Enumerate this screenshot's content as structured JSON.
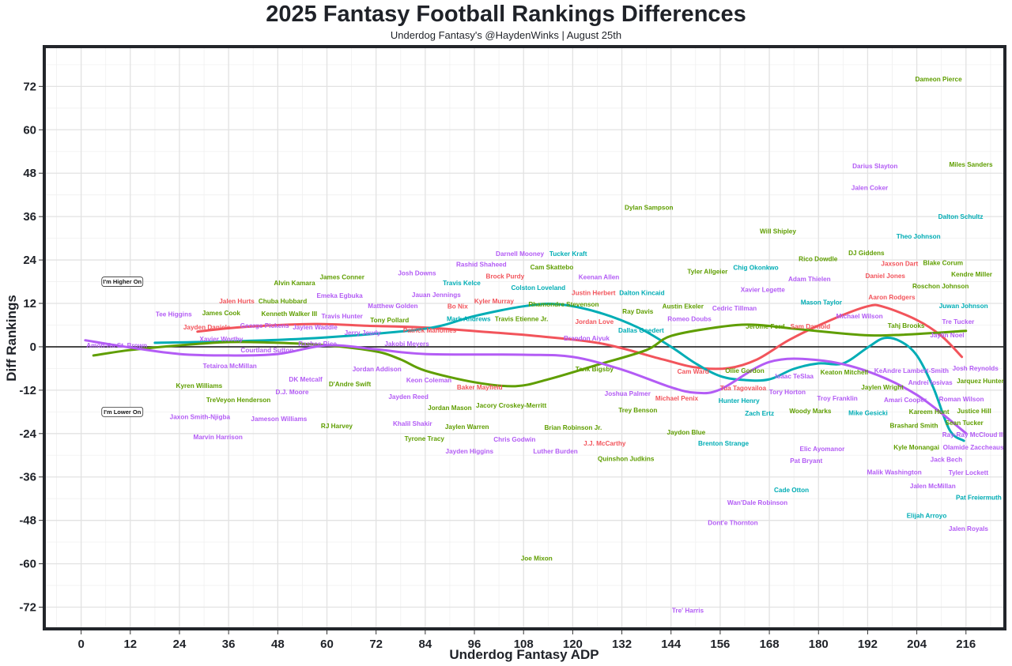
{
  "chart_data": {
    "type": "scatter",
    "title": "2025 Fantasy Football Rankings Differences",
    "subtitle": "Underdog Fantasy's @HaydenWinks | August 25th",
    "xlabel": "Underdog Fantasy ADP",
    "ylabel": "Diff Rankings",
    "xlim": [
      -9,
      225.5
    ],
    "ylim": [
      -78,
      83
    ],
    "xticks": [
      0,
      12,
      24,
      36,
      48,
      60,
      72,
      84,
      96,
      108,
      120,
      132,
      144,
      156,
      168,
      180,
      192,
      204,
      216
    ],
    "yticks": [
      -72,
      -60,
      -48,
      -36,
      -24,
      -12,
      0,
      12,
      24,
      36,
      48,
      60,
      72
    ],
    "grid": true,
    "zero_line": true,
    "palette": {
      "red": "#f2545b",
      "green": "#5f9e00",
      "teal": "#00adb5",
      "purple": "#b35cf5"
    },
    "annotations": [
      {
        "text": "I'm Higher On",
        "x": 6,
        "y": 18
      },
      {
        "text": "I'm Lower On",
        "x": 6,
        "y": -18
      }
    ],
    "trend_lines": [
      {
        "color": "red",
        "points": [
          [
            28.4,
            4.2
          ],
          [
            40,
            5.5
          ],
          [
            57,
            6.3
          ],
          [
            70,
            5.8
          ],
          [
            84,
            5.3
          ],
          [
            100,
            4
          ],
          [
            111,
            3
          ],
          [
            127,
            0.9
          ],
          [
            142,
            -3.5
          ],
          [
            150,
            -5.7
          ],
          [
            158,
            -5.9
          ],
          [
            165,
            -3.5
          ],
          [
            173,
            2
          ],
          [
            183,
            7.4
          ],
          [
            192,
            11.2
          ],
          [
            196,
            11
          ],
          [
            204,
            7.4
          ],
          [
            210,
            3
          ],
          [
            215,
            -2.8
          ]
        ]
      },
      {
        "color": "teal",
        "points": [
          [
            18,
            1.1
          ],
          [
            40,
            1.6
          ],
          [
            60,
            2.6
          ],
          [
            84,
            5
          ],
          [
            96,
            8.5
          ],
          [
            108,
            11.2
          ],
          [
            116,
            11.8
          ],
          [
            126,
            9.6
          ],
          [
            136,
            5.3
          ],
          [
            144,
            0
          ],
          [
            150,
            -4.6
          ],
          [
            156,
            -8.1
          ],
          [
            162,
            -9.2
          ],
          [
            168,
            -9
          ],
          [
            174,
            -6.1
          ],
          [
            180,
            -4.6
          ],
          [
            186,
            -4.6
          ],
          [
            192,
            -0.2
          ],
          [
            196,
            2.4
          ],
          [
            200,
            1.5
          ],
          [
            204,
            -2.4
          ],
          [
            208,
            -11.2
          ],
          [
            212,
            -23
          ],
          [
            215.5,
            -26
          ]
        ]
      },
      {
        "color": "green",
        "points": [
          [
            3,
            -2.4
          ],
          [
            12,
            -0.9
          ],
          [
            24,
            0.4
          ],
          [
            36,
            1.3
          ],
          [
            48,
            1.1
          ],
          [
            60,
            0.4
          ],
          [
            72,
            -1.3
          ],
          [
            78,
            -3.5
          ],
          [
            84,
            -6.6
          ],
          [
            96,
            -9.8
          ],
          [
            106,
            -10.9
          ],
          [
            114,
            -9
          ],
          [
            126,
            -5
          ],
          [
            138,
            -0.9
          ],
          [
            144,
            3
          ],
          [
            156,
            5.5
          ],
          [
            164,
            6.1
          ],
          [
            174,
            5
          ],
          [
            190,
            3.3
          ],
          [
            200,
            3.3
          ],
          [
            216,
            4.4
          ]
        ]
      },
      {
        "color": "purple",
        "points": [
          [
            1,
            1.8
          ],
          [
            12,
            -0.2
          ],
          [
            24,
            -2
          ],
          [
            36,
            -2.4
          ],
          [
            48,
            -2
          ],
          [
            60,
            0.4
          ],
          [
            72,
            -0.7
          ],
          [
            84,
            -2
          ],
          [
            108,
            -2.2
          ],
          [
            120,
            -2.8
          ],
          [
            132,
            -6.3
          ],
          [
            144,
            -11.2
          ],
          [
            150,
            -12.7
          ],
          [
            156,
            -11.8
          ],
          [
            168,
            -4.2
          ],
          [
            180,
            -3.7
          ],
          [
            192,
            -6.8
          ],
          [
            204,
            -13.3
          ],
          [
            216,
            -23.9
          ]
        ]
      }
    ],
    "points": [
      [
        "Dameon Pierce",
        209.3,
        74,
        "green"
      ],
      [
        "Darius Slayton",
        193.8,
        50,
        "purple"
      ],
      [
        "Miles Sanders",
        217.2,
        50.5,
        "green"
      ],
      [
        "Jalen Coker",
        192.5,
        44,
        "purple"
      ],
      [
        "Dylan Sampson",
        138.6,
        38.5,
        "green"
      ],
      [
        "Dalton Schultz",
        214.7,
        36,
        "teal"
      ],
      [
        "Will Shipley",
        170.1,
        32,
        "green"
      ],
      [
        "Theo Johnson",
        204.4,
        30.6,
        "teal"
      ],
      [
        "DJ Giddens",
        191.7,
        26,
        "green"
      ],
      [
        "Darnell Mooney",
        107.1,
        25.8,
        "purple"
      ],
      [
        "Tucker Kraft",
        118.9,
        25.8,
        "teal"
      ],
      [
        "Rico Dowdle",
        179.9,
        24.3,
        "green"
      ],
      [
        "Jaxson Dart",
        199.8,
        23,
        "red"
      ],
      [
        "Blake Corum",
        210.4,
        23.2,
        "green"
      ],
      [
        "Rashid Shaheed",
        97.7,
        22.8,
        "purple"
      ],
      [
        "Cam Skattebo",
        114.9,
        22.1,
        "green"
      ],
      [
        "Chig Okonkwo",
        164.7,
        21.9,
        "teal"
      ],
      [
        "Tyler Allgeier",
        152.9,
        20.8,
        "green"
      ],
      [
        "Josh Downs",
        82,
        20.4,
        "purple"
      ],
      [
        "Brock Purdy",
        103.5,
        19.5,
        "red"
      ],
      [
        "Kendre Miller",
        217.4,
        20.1,
        "green"
      ],
      [
        "Daniel Jones",
        196.3,
        19.7,
        "red"
      ],
      [
        "Keenan Allen",
        126.4,
        19.3,
        "purple"
      ],
      [
        "James Conner",
        63.7,
        19.3,
        "green"
      ],
      [
        "Adam Thielen",
        177.8,
        18.8,
        "purple"
      ],
      [
        "Alvin Kamara",
        52.1,
        17.7,
        "green"
      ],
      [
        "Travis Kelce",
        92.9,
        17.7,
        "teal"
      ],
      [
        "Colston Loveland",
        111.6,
        16.4,
        "teal"
      ],
      [
        "Roschon Johnson",
        209.8,
        16.8,
        "green"
      ],
      [
        "Xavier Legette",
        166.4,
        15.8,
        "purple"
      ],
      [
        "Justin Herbert",
        125.1,
        14.9,
        "red"
      ],
      [
        "Dalton Kincaid",
        136.9,
        14.9,
        "teal"
      ],
      [
        "Jauan Jennings",
        86.7,
        14.4,
        "purple"
      ],
      [
        "Emeka Egbuka",
        63.1,
        14.2,
        "purple"
      ],
      [
        "Aaron Rodgers",
        197.9,
        13.8,
        "red"
      ],
      [
        "Jalen Hurts",
        38,
        12.7,
        "red"
      ],
      [
        "Chuba Hubbard",
        49.2,
        12.7,
        "green"
      ],
      [
        "Kyler Murray",
        100.8,
        12.7,
        "red"
      ],
      [
        "Mason Taylor",
        180.7,
        12.3,
        "teal"
      ],
      [
        "Bo Nix",
        91.9,
        11.2,
        "red"
      ],
      [
        "Matthew Golden",
        76.1,
        11.4,
        "purple"
      ],
      [
        "Rhamondre Stevenson",
        117.8,
        11.8,
        "green"
      ],
      [
        "Juwan Johnson",
        215.4,
        11.4,
        "teal"
      ],
      [
        "Austin Ekeler",
        146.9,
        11.2,
        "green"
      ],
      [
        "Cedric Tillman",
        159.5,
        10.7,
        "purple"
      ],
      [
        "Tee Higgins",
        22.6,
        9,
        "purple"
      ],
      [
        "James Cook",
        34.2,
        9.4,
        "green"
      ],
      [
        "Kenneth Walker III",
        50.8,
        9.2,
        "green"
      ],
      [
        "Ray Davis",
        135.9,
        9.8,
        "green"
      ],
      [
        "Travis Hunter",
        63.7,
        8.5,
        "purple"
      ],
      [
        "Michael Wilson",
        190,
        8.5,
        "purple"
      ],
      [
        "Tony Pollard",
        75.3,
        7.4,
        "green"
      ],
      [
        "Mark Andrews",
        94.6,
        7.7,
        "teal"
      ],
      [
        "Travis Etienne Jr.",
        107.5,
        7.7,
        "green"
      ],
      [
        "Romeo Doubs",
        148.5,
        7.7,
        "purple"
      ],
      [
        "Jordan Love",
        125.3,
        7,
        "red"
      ],
      [
        "Tre Tucker",
        214.1,
        7,
        "purple"
      ],
      [
        "Tahj Brooks",
        201.4,
        5.9,
        "green"
      ],
      [
        "George Pickens",
        44.8,
        5.9,
        "purple"
      ],
      [
        "Jayden Daniels",
        30.7,
        5.5,
        "red"
      ],
      [
        "Jaylen Waddle",
        57.1,
        5.5,
        "purple"
      ],
      [
        "Jerome Ford",
        167,
        5.7,
        "green"
      ],
      [
        "Sam Darnold",
        178,
        5.7,
        "red"
      ],
      [
        "Patrick Mahomes",
        85.1,
        4.6,
        "red"
      ],
      [
        "Dallas Goedert",
        136.7,
        4.6,
        "teal"
      ],
      [
        "Jerry Jeudy",
        68.7,
        3.9,
        "purple"
      ],
      [
        "Jaylin Noel",
        211.4,
        3.3,
        "purple"
      ],
      [
        "Xavier Worthy",
        34.2,
        2.2,
        "purple"
      ],
      [
        "Brandon Aiyuk",
        123.4,
        2.4,
        "purple"
      ],
      [
        "Amon-Ra St. Brown",
        8.7,
        0.4,
        "purple"
      ],
      [
        "Rashee Rice",
        57.7,
        0.9,
        "purple"
      ],
      [
        "Jakobi Meyers",
        79.5,
        0.9,
        "purple"
      ],
      [
        "Courtland Sutton",
        45.4,
        -0.9,
        "purple"
      ],
      [
        "Tetairoa McMillan",
        36.3,
        -5.3,
        "purple"
      ],
      [
        "Jordan Addison",
        72.2,
        -6.1,
        "purple"
      ],
      [
        "Tank Bigsby",
        125.3,
        -6.1,
        "green"
      ],
      [
        "Cam Ward",
        149.4,
        -6.8,
        "red"
      ],
      [
        "Ollie Gordon",
        162,
        -6.6,
        "green"
      ],
      [
        "KeAndre Lambert-Smith",
        202.7,
        -6.6,
        "purple"
      ],
      [
        "Josh Reynolds",
        218.3,
        -5.9,
        "purple"
      ],
      [
        "Isaac TeSlaa",
        174.1,
        -8.1,
        "purple"
      ],
      [
        "Keaton Mitchell",
        186.3,
        -7,
        "green"
      ],
      [
        "Keon Coleman",
        84.9,
        -9.2,
        "purple"
      ],
      [
        "DK Metcalf",
        54.8,
        -9,
        "purple"
      ],
      [
        "Jarquez Hunter",
        219.5,
        -9.4,
        "green"
      ],
      [
        "D'Andre Swift",
        65.6,
        -10.3,
        "green"
      ],
      [
        "Kyren Williams",
        28.8,
        -10.7,
        "green"
      ],
      [
        "Baker Mayfield",
        97.3,
        -11.2,
        "red"
      ],
      [
        "Andrei Iosivas",
        207.3,
        -9.8,
        "purple"
      ],
      [
        "Tua Tagovailoa",
        161.6,
        -11.4,
        "red"
      ],
      [
        "Jaylen Wright",
        195.6,
        -11.2,
        "green"
      ],
      [
        "Tory Horton",
        172.4,
        -12.5,
        "purple"
      ],
      [
        "D.J. Moore",
        51.5,
        -12.5,
        "purple"
      ],
      [
        "Joshua Palmer",
        133.4,
        -12.9,
        "purple"
      ],
      [
        "Jayden Reed",
        79.9,
        -13.8,
        "purple"
      ],
      [
        "Michael Penix",
        145.4,
        -14.2,
        "red"
      ],
      [
        "Troy Franklin",
        184.6,
        -14.2,
        "purple"
      ],
      [
        "TreVeyon Henderson",
        38.4,
        -14.7,
        "green"
      ],
      [
        "Amari Cooper",
        201.2,
        -14.7,
        "purple"
      ],
      [
        "Roman Wilson",
        214.9,
        -14.4,
        "purple"
      ],
      [
        "Hunter Henry",
        160.6,
        -14.9,
        "teal"
      ],
      [
        "Jacory Croskey-Merritt",
        105,
        -16.2,
        "green"
      ],
      [
        "Jordan Mason",
        90,
        -16.8,
        "green"
      ],
      [
        "Trey Benson",
        135.9,
        -17.5,
        "green"
      ],
      [
        "Woody Marks",
        178,
        -17.7,
        "green"
      ],
      [
        "Justice Hill",
        218,
        -17.7,
        "green"
      ],
      [
        "Mike Gesicki",
        192.1,
        -18.2,
        "teal"
      ],
      [
        "Zach Ertz",
        165.6,
        -18.4,
        "teal"
      ],
      [
        "Kareem Hunt",
        207,
        -17.9,
        "green"
      ],
      [
        "Jaxon Smith-Njigba",
        29,
        -19.3,
        "purple"
      ],
      [
        "Jameson Williams",
        48.3,
        -19.9,
        "purple"
      ],
      [
        "Khalil Shakir",
        80.9,
        -21.2,
        "purple"
      ],
      [
        "Sean Tucker",
        215.6,
        -21,
        "green"
      ],
      [
        "RJ Harvey",
        62.4,
        -21.9,
        "green"
      ],
      [
        "Jaylen Warren",
        94.2,
        -22.1,
        "green"
      ],
      [
        "Brian Robinson Jr.",
        120.1,
        -22.3,
        "green"
      ],
      [
        "Brashard Smith",
        203.3,
        -21.7,
        "green"
      ],
      [
        "Jaydon Blue",
        147.7,
        -23.6,
        "green"
      ],
      [
        "Ray-Ray McCloud III",
        217.8,
        -24.3,
        "purple"
      ],
      [
        "Marvin Harrison",
        33.4,
        -24.9,
        "purple"
      ],
      [
        "Tyrone Tracy",
        83.8,
        -25.4,
        "green"
      ],
      [
        "Chris Godwin",
        105.8,
        -25.6,
        "purple"
      ],
      [
        "Brenton Strange",
        156.8,
        -26.7,
        "teal"
      ],
      [
        "J.J. McCarthy",
        127.8,
        -26.7,
        "red"
      ],
      [
        "Kyle Monangai",
        203.9,
        -27.8,
        "green"
      ],
      [
        "Olamide Zaccheaus",
        217.8,
        -27.8,
        "purple"
      ],
      [
        "Elic Ayomanor",
        180.9,
        -28.2,
        "purple"
      ],
      [
        "Jayden Higgins",
        94.8,
        -28.9,
        "purple"
      ],
      [
        "Luther Burden",
        115.8,
        -28.9,
        "purple"
      ],
      [
        "Quinshon Judkins",
        133,
        -30.9,
        "green"
      ],
      [
        "Jack Bech",
        211.2,
        -31.1,
        "purple"
      ],
      [
        "Pat Bryant",
        177,
        -31.5,
        "purple"
      ],
      [
        "Malik Washington",
        198.5,
        -34.6,
        "purple"
      ],
      [
        "Tyler Lockett",
        216.6,
        -34.8,
        "purple"
      ],
      [
        "Jalen McMillan",
        207.9,
        -38.5,
        "purple"
      ],
      [
        "Cade Otton",
        173.4,
        -39.6,
        "teal"
      ],
      [
        "Pat Freiermuth",
        219.1,
        -41.6,
        "teal"
      ],
      [
        "Wan'Dale Robinson",
        165.1,
        -43.1,
        "purple"
      ],
      [
        "Elijah Arroyo",
        206.4,
        -46.6,
        "teal"
      ],
      [
        "Dont'e Thornton",
        159.1,
        -48.6,
        "purple"
      ],
      [
        "Jalen Royals",
        216.6,
        -50.3,
        "purple"
      ],
      [
        "Joe Mixon",
        111.2,
        -58.4,
        "green"
      ],
      [
        "Tre' Harris",
        148.1,
        -72.9,
        "purple"
      ]
    ]
  }
}
